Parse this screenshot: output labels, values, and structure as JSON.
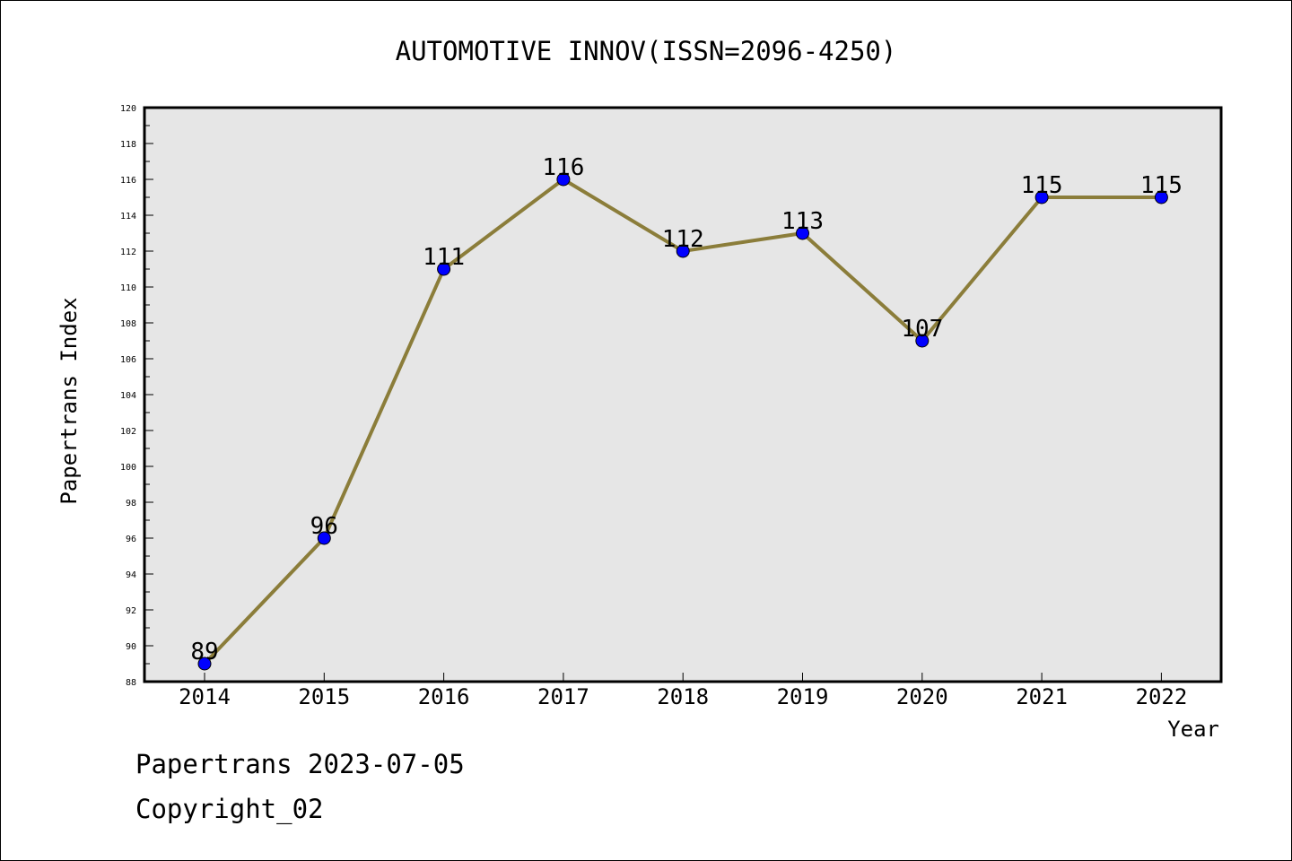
{
  "chart_data": {
    "type": "line",
    "title": "AUTOMOTIVE INNOV(ISSN=2096-4250)",
    "xlabel": "Year",
    "ylabel": "Papertrans Index",
    "categories": [
      "2014",
      "2015",
      "2016",
      "2017",
      "2018",
      "2019",
      "2020",
      "2021",
      "2022"
    ],
    "values": [
      89,
      96,
      111,
      116,
      112,
      113,
      107,
      115,
      115
    ],
    "ylim": [
      88,
      120
    ],
    "yticks": [
      88,
      90,
      92,
      94,
      96,
      98,
      100,
      102,
      104,
      106,
      108,
      110,
      112,
      114,
      116,
      118,
      120
    ],
    "grid": false,
    "colors": {
      "line": "#8B7D3A",
      "marker": "#0000FF",
      "plot_bg": "#E6E6E6"
    }
  },
  "footer": {
    "line1": "Papertrans 2023-07-05",
    "line2": "Copyright_02"
  }
}
